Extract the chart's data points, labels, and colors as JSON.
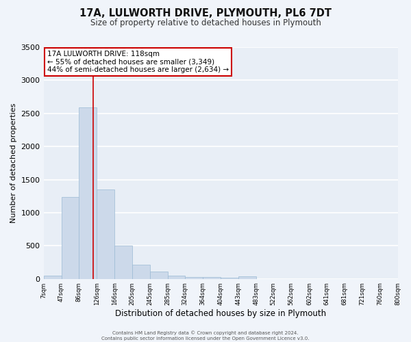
{
  "title_line1": "17A, LULWORTH DRIVE, PLYMOUTH, PL6 7DT",
  "title_line2": "Size of property relative to detached houses in Plymouth",
  "xlabel": "Distribution of detached houses by size in Plymouth",
  "ylabel": "Number of detached properties",
  "bar_color": "#ccd9ea",
  "bar_edge_color": "#9bbad4",
  "background_color": "#e8eef6",
  "fig_background_color": "#f0f4fa",
  "grid_color": "#ffffff",
  "vline_x": 118,
  "vline_color": "#cc0000",
  "bin_edges": [
    7,
    47,
    86,
    126,
    166,
    205,
    245,
    285,
    324,
    364,
    404,
    443,
    483,
    522,
    562,
    602,
    641,
    681,
    721,
    760,
    800
  ],
  "bin_labels": [
    "7sqm",
    "47sqm",
    "86sqm",
    "126sqm",
    "166sqm",
    "205sqm",
    "245sqm",
    "285sqm",
    "324sqm",
    "364sqm",
    "404sqm",
    "443sqm",
    "483sqm",
    "522sqm",
    "562sqm",
    "602sqm",
    "641sqm",
    "681sqm",
    "721sqm",
    "760sqm",
    "800sqm"
  ],
  "bar_heights": [
    50,
    1240,
    2590,
    1350,
    500,
    210,
    110,
    50,
    30,
    25,
    20,
    40,
    0,
    0,
    0,
    0,
    0,
    0,
    0,
    0
  ],
  "ylim": [
    0,
    3500
  ],
  "yticks": [
    0,
    500,
    1000,
    1500,
    2000,
    2500,
    3000,
    3500
  ],
  "annotation_title": "17A LULWORTH DRIVE: 118sqm",
  "annotation_line1": "← 55% of detached houses are smaller (3,349)",
  "annotation_line2": "44% of semi-detached houses are larger (2,634) →",
  "annotation_box_color": "#ffffff",
  "annotation_box_edge_color": "#cc0000",
  "footer_line1": "Contains HM Land Registry data © Crown copyright and database right 2024.",
  "footer_line2": "Contains public sector information licensed under the Open Government Licence v3.0."
}
